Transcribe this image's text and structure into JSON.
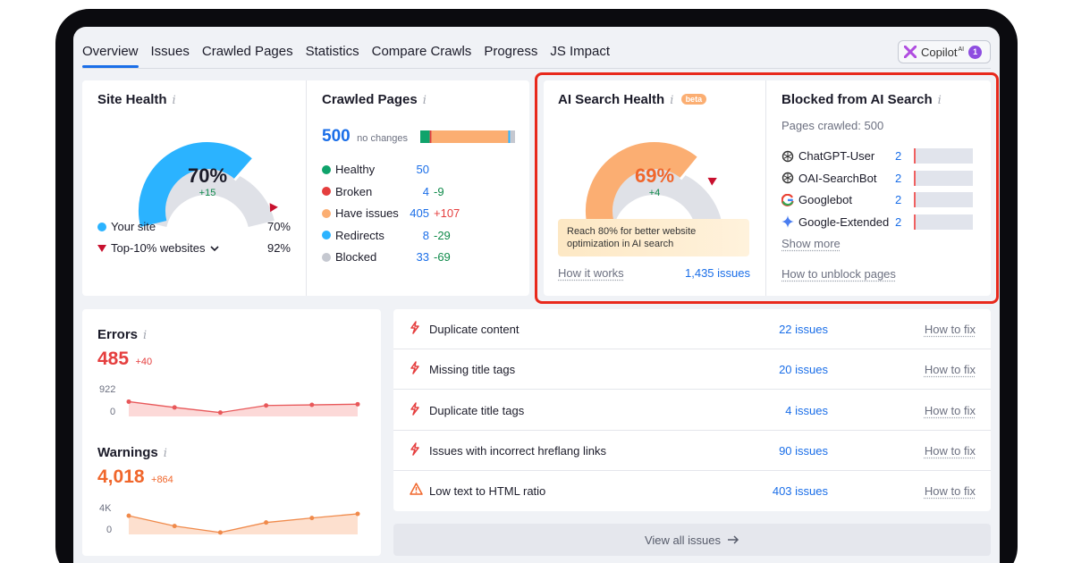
{
  "tabs": [
    "Overview",
    "Issues",
    "Crawled Pages",
    "Statistics",
    "Compare Crawls",
    "Progress",
    "JS Impact"
  ],
  "copilot": {
    "label": "Copilot",
    "sup": "AI",
    "count": "1"
  },
  "site_health": {
    "title": "Site Health",
    "value": "70%",
    "delta": "+15",
    "legend": [
      {
        "label": "Your site",
        "value": "70%"
      },
      {
        "label": "Top-10% websites",
        "value": "92%"
      }
    ],
    "colors": {
      "fill": "#2bb3ff",
      "rest": "#dfe1e7",
      "marker": "#c8102e"
    },
    "level": 0.7,
    "benchmark": 0.92
  },
  "crawled_pages": {
    "title": "Crawled Pages",
    "total": "500",
    "total_note": "no changes",
    "rows": [
      {
        "label": "Healthy",
        "value": "50",
        "delta": "",
        "color": "#0fa36b"
      },
      {
        "label": "Broken",
        "value": "4",
        "delta": "-9",
        "color": "#e53e3e"
      },
      {
        "label": "Have issues",
        "value": "405",
        "delta": "+107",
        "color": "#fbae72"
      },
      {
        "label": "Redirects",
        "value": "8",
        "delta": "-29",
        "color": "#2bb3ff"
      },
      {
        "label": "Blocked",
        "value": "33",
        "delta": "-69",
        "color": "#c5c8d0"
      }
    ]
  },
  "ai_health": {
    "title": "AI Search Health",
    "beta": "beta",
    "value": "69%",
    "delta": "+4",
    "notice": "Reach 80% for better website optimization in AI search",
    "how_it_works": "How it works",
    "issues_link": "1,435 issues",
    "level": 0.69,
    "target": 0.8,
    "colors": {
      "fill": "#fbae72",
      "rest": "#dfe1e7",
      "marker": "#c8102e"
    }
  },
  "blocked_ai": {
    "title": "Blocked from AI Search",
    "subtitle": "Pages crawled: 500",
    "bots": [
      {
        "icon": "openai-icon",
        "label": "ChatGPT-User",
        "value": "2"
      },
      {
        "icon": "openai-icon",
        "label": "OAI-SearchBot",
        "value": "2"
      },
      {
        "icon": "google-icon",
        "label": "Googlebot",
        "value": "2"
      },
      {
        "icon": "gemini-icon",
        "label": "Google-Extended",
        "value": "2"
      }
    ],
    "show_more": "Show more",
    "unblock_link": "How to unblock pages"
  },
  "errors": {
    "title": "Errors",
    "value": "485",
    "delta": "+40",
    "y_top": "922",
    "y_bottom": "0",
    "points": [
      0.54,
      0.72,
      0.88,
      0.66,
      0.64,
      0.62
    ]
  },
  "warnings": {
    "title": "Warnings",
    "value": "4,018",
    "delta": "+864",
    "y_top": "4K",
    "y_bottom": "0",
    "points": [
      0.42,
      0.74,
      0.94,
      0.63,
      0.49,
      0.36
    ]
  },
  "issues": [
    {
      "icon": "error-icon",
      "label": "Duplicate content",
      "count": "22 issues",
      "fix": "How to fix"
    },
    {
      "icon": "error-icon",
      "label": "Missing title tags",
      "count": "20 issues",
      "fix": "How to fix"
    },
    {
      "icon": "error-icon",
      "label": "Duplicate title tags",
      "count": "4 issues",
      "fix": "How to fix"
    },
    {
      "icon": "error-icon",
      "label": "Issues with incorrect hreflang links",
      "count": "90 issues",
      "fix": "How to fix"
    },
    {
      "icon": "warning-icon",
      "label": "Low text to HTML ratio",
      "count": "403 issues",
      "fix": "How to fix"
    }
  ],
  "view_all": "View all issues"
}
